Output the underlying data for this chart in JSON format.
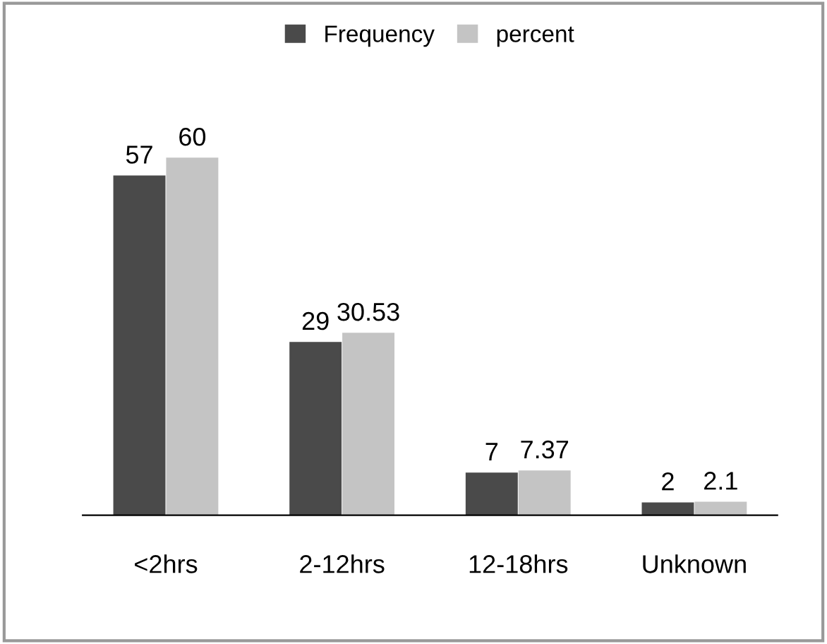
{
  "chart_data": {
    "type": "bar",
    "categories": [
      "<2hrs",
      "2-12hrs",
      "12-18hrs",
      "Unknown"
    ],
    "series": [
      {
        "name": "Frequency",
        "color": "#4a4a4a",
        "values": [
          57,
          29,
          7,
          2
        ]
      },
      {
        "name": "percent",
        "color": "#c4c4c4",
        "values": [
          60,
          30.53,
          7.37,
          2.1
        ]
      }
    ],
    "data_labels": true,
    "legend": "top",
    "grid": false
  }
}
